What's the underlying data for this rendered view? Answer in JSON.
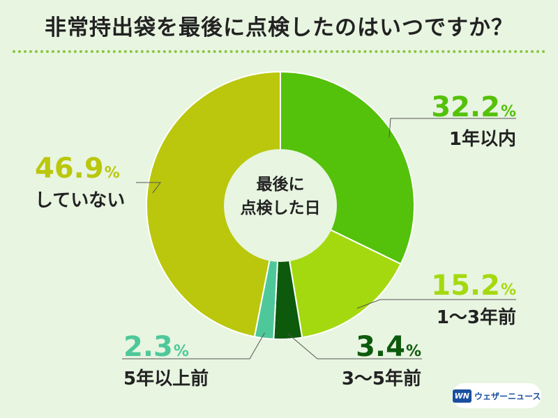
{
  "title": "非常持出袋を最後に点検したのはいつですか？",
  "center_label": [
    "最後に",
    "点検した日"
  ],
  "logo": {
    "mark": "WN",
    "text": "ウェザーニュース"
  },
  "colors": {
    "background": "#e8f5e1",
    "dots": "#8cc63f",
    "center": "#e8f5e1"
  },
  "chart_data": {
    "type": "pie",
    "title": "非常持出袋を最後に点検したのはいつですか？",
    "unit": "%",
    "slices": [
      {
        "label": "1年以内",
        "value": 32.2,
        "value_text": "32.2",
        "color": "#54c10a"
      },
      {
        "label": "1〜3年前",
        "value": 15.2,
        "value_text": "15.2",
        "color": "#a5d90f"
      },
      {
        "label": "3〜5年前",
        "value": 3.4,
        "value_text": "3.4",
        "color": "#0d5a0d"
      },
      {
        "label": "5年以上前",
        "value": 2.3,
        "value_text": "2.3",
        "color": "#4ec89a"
      },
      {
        "label": "していない",
        "value": 46.9,
        "value_text": "46.9",
        "color": "#bac70c"
      }
    ]
  }
}
